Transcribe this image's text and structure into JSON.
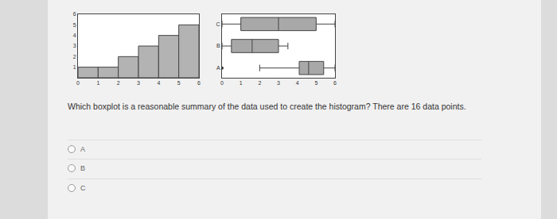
{
  "chart_data": [
    {
      "type": "histogram",
      "bins": [
        0,
        1,
        2,
        3,
        4,
        5,
        6
      ],
      "values": [
        1,
        1,
        2,
        3,
        4,
        5
      ],
      "color": "#b3b3b3",
      "xlim": [
        0,
        6
      ],
      "xticks": [
        0,
        1,
        2,
        3,
        4,
        5,
        6
      ],
      "ylim": [
        0,
        6
      ],
      "yticks": [
        1,
        2,
        3,
        4,
        5,
        6
      ]
    },
    {
      "type": "box",
      "orientation": "horizontal",
      "categories": [
        "A",
        "B",
        "C"
      ],
      "color": "#a8a8a8",
      "series": [
        {
          "name": "A",
          "min": 2,
          "q1": 4.1,
          "median": 4.6,
          "q3": 5.4,
          "max": 6,
          "outliers": [
            0
          ]
        },
        {
          "name": "B",
          "min": 0,
          "q1": 0.5,
          "median": 1.6,
          "q3": 3,
          "max": 3.5,
          "outliers": []
        },
        {
          "name": "C",
          "min": 0,
          "q1": 1,
          "median": 3,
          "q3": 5,
          "max": 6,
          "outliers": []
        }
      ],
      "xlim": [
        0,
        6
      ],
      "xticks": [
        0,
        1,
        2,
        3,
        4,
        5,
        6
      ]
    }
  ],
  "question": "Which boxplot is a reasonable summary of the data used to create the histogram? There are 16 data points.",
  "options": [
    "A",
    "B",
    "C"
  ]
}
